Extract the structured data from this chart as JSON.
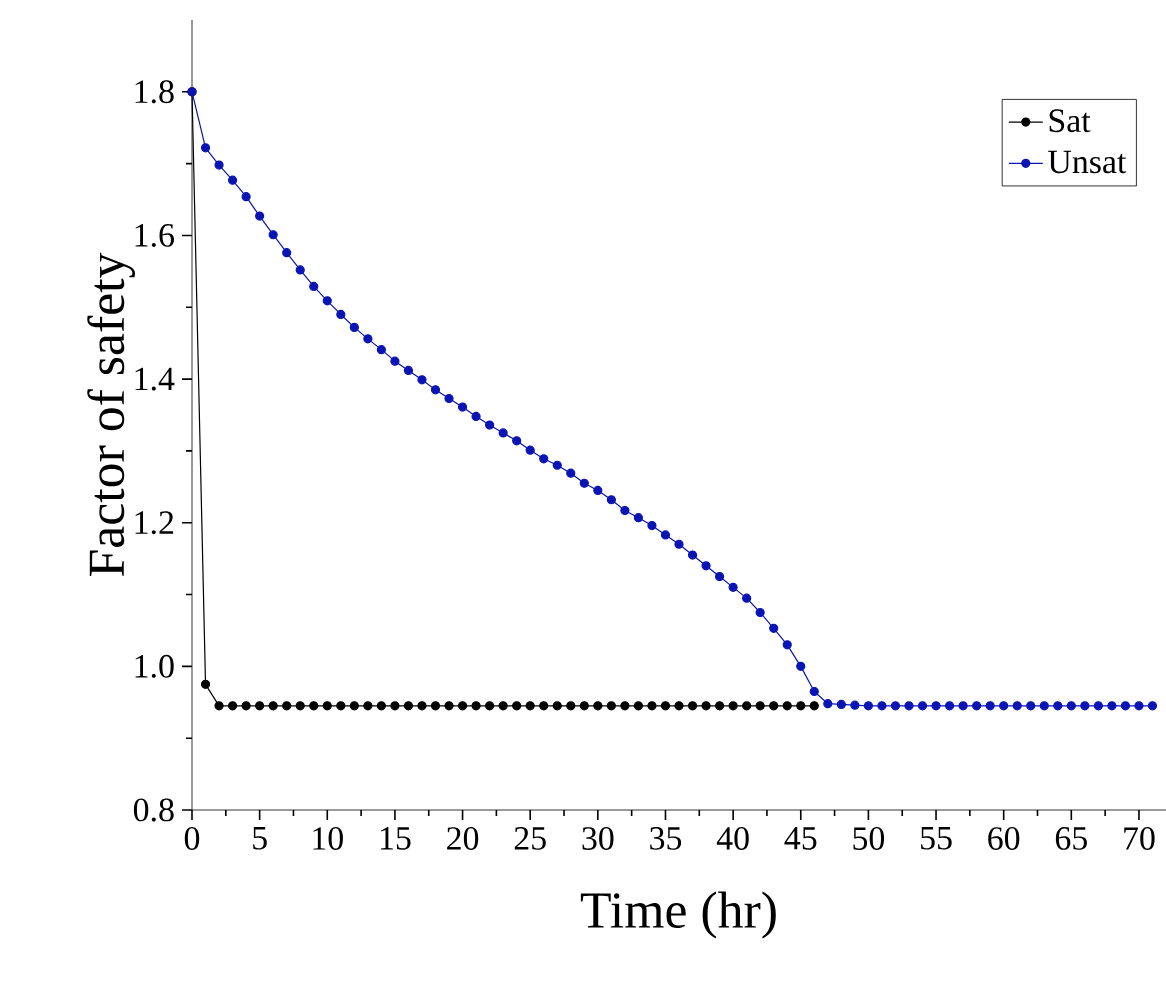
{
  "chart_data": {
    "type": "line",
    "xlabel": "Time (hr)",
    "ylabel": "Factor of safety",
    "x": [
      0,
      1,
      2,
      3,
      4,
      5,
      6,
      7,
      8,
      9,
      10,
      11,
      12,
      13,
      14,
      15,
      16,
      17,
      18,
      19,
      20,
      21,
      22,
      23,
      24,
      25,
      26,
      27,
      28,
      29,
      30,
      31,
      32,
      33,
      34,
      35,
      36,
      37,
      38,
      39,
      40,
      41,
      42,
      43,
      44,
      45,
      46,
      47,
      48,
      49,
      50,
      51,
      52,
      53,
      54,
      55,
      56,
      57,
      58,
      59,
      60,
      61,
      62,
      63,
      64,
      65,
      66,
      67,
      68,
      69,
      70,
      71
    ],
    "series": [
      {
        "name": "Sat",
        "color": "#000000",
        "values": [
          1.8,
          0.975,
          0.945,
          0.945,
          0.945,
          0.945,
          0.945,
          0.945,
          0.945,
          0.945,
          0.945,
          0.945,
          0.945,
          0.945,
          0.945,
          0.945,
          0.945,
          0.945,
          0.945,
          0.945,
          0.945,
          0.945,
          0.945,
          0.945,
          0.945,
          0.945,
          0.945,
          0.945,
          0.945,
          0.945,
          0.945,
          0.945,
          0.945,
          0.945,
          0.945,
          0.945,
          0.945,
          0.945,
          0.945,
          0.945,
          0.945,
          0.945,
          0.945,
          0.945,
          0.945,
          0.945,
          0.945,
          null,
          null,
          null,
          null,
          null,
          null,
          null,
          null,
          null,
          null,
          null,
          null,
          null,
          null,
          null,
          null,
          null,
          null,
          null,
          null,
          null,
          null,
          null,
          null,
          null
        ]
      },
      {
        "name": "Unsat",
        "color": "#0a14b4",
        "values": [
          1.8,
          1.722,
          1.698,
          1.677,
          1.654,
          1.627,
          1.601,
          1.576,
          1.552,
          1.529,
          1.509,
          1.49,
          1.472,
          1.456,
          1.441,
          1.425,
          1.412,
          1.399,
          1.385,
          1.373,
          1.361,
          1.348,
          1.336,
          1.325,
          1.314,
          1.301,
          1.289,
          1.28,
          1.269,
          1.255,
          1.245,
          1.232,
          1.217,
          1.207,
          1.196,
          1.183,
          1.17,
          1.155,
          1.14,
          1.125,
          1.11,
          1.095,
          1.075,
          1.053,
          1.03,
          1.0,
          0.965,
          0.948,
          0.947,
          0.946,
          0.945,
          0.945,
          0.945,
          0.945,
          0.945,
          0.945,
          0.945,
          0.945,
          0.945,
          0.945,
          0.945,
          0.945,
          0.945,
          0.945,
          0.945,
          0.945,
          0.945,
          0.945,
          0.945,
          0.945,
          0.945,
          0.945
        ]
      }
    ],
    "xlim": [
      0,
      72
    ],
    "ylim": [
      0.8,
      1.9
    ],
    "xticks": [
      0,
      5,
      10,
      15,
      20,
      25,
      30,
      35,
      40,
      45,
      50,
      55,
      60,
      65,
      70
    ],
    "yticks": [
      0.8,
      {
        "value": 1.0,
        "label": "1.0"
      },
      1.2,
      1.4,
      1.6,
      1.8
    ],
    "marker": "circle",
    "legend": "top right"
  }
}
